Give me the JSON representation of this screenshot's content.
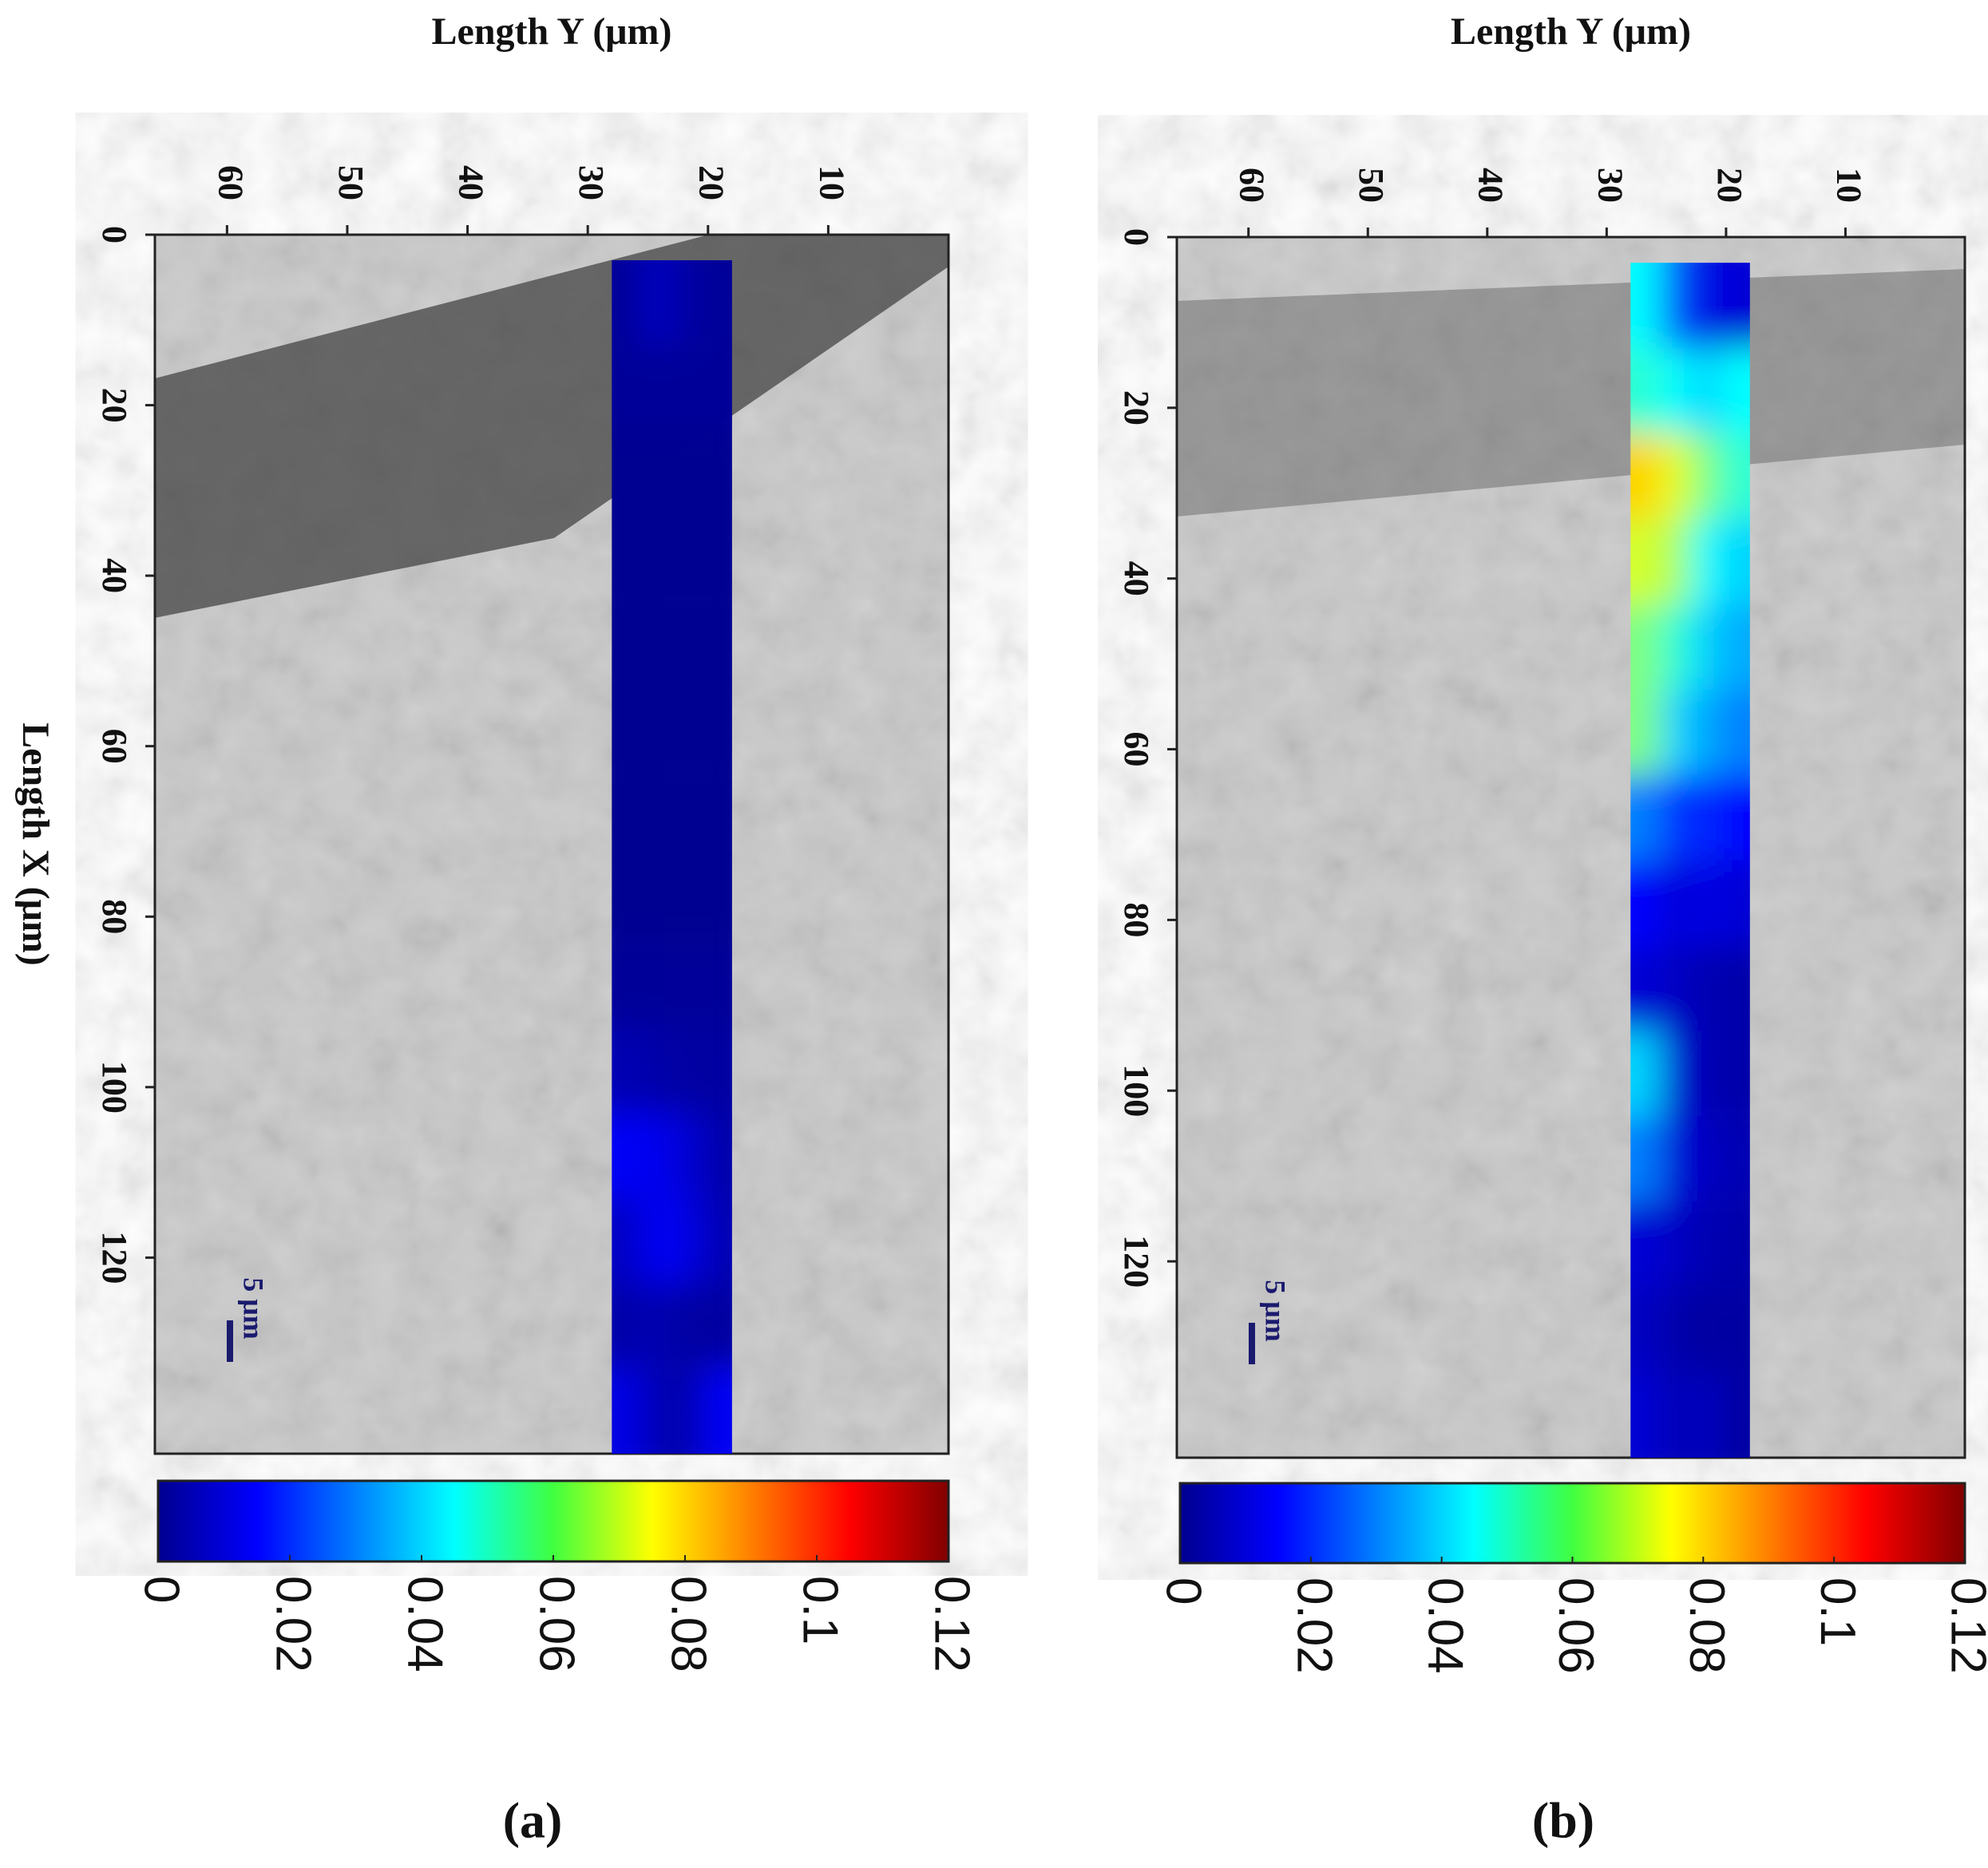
{
  "chart_data": [
    {
      "type": "heatmap",
      "panel_label": "(a)",
      "xlabel": "Length Y (μm)",
      "ylabel": "Length X (μm)",
      "scale_bar_label": "5 μm",
      "xlim": [
        66,
        0
      ],
      "xticks": [
        60,
        50,
        40,
        30,
        20,
        10
      ],
      "ylim": [
        0,
        143
      ],
      "yticks": [
        0,
        20,
        40,
        60,
        80,
        100,
        120
      ],
      "x": [
        26.75,
        24.25,
        21.75,
        19.25
      ],
      "y": [
        8,
        18,
        28,
        38,
        48,
        58,
        68,
        78,
        88,
        98,
        108,
        118,
        128,
        138
      ],
      "z": [
        [
          0.003,
          0.008,
          0.004,
          0.003
        ],
        [
          0.003,
          0.003,
          0.003,
          0.003
        ],
        [
          0.002,
          0.002,
          0.002,
          0.002
        ],
        [
          0.002,
          0.002,
          0.002,
          0.002
        ],
        [
          0.002,
          0.002,
          0.002,
          0.002
        ],
        [
          0.002,
          0.002,
          0.002,
          0.002
        ],
        [
          0.002,
          0.002,
          0.002,
          0.002
        ],
        [
          0.002,
          0.002,
          0.002,
          0.002
        ],
        [
          0.003,
          0.003,
          0.003,
          0.003
        ],
        [
          0.006,
          0.005,
          0.004,
          0.004
        ],
        [
          0.014,
          0.013,
          0.01,
          0.005
        ],
        [
          0.008,
          0.014,
          0.012,
          0.006
        ],
        [
          0.005,
          0.006,
          0.004,
          0.004
        ],
        [
          0.012,
          0.006,
          0.005,
          0.014
        ]
      ],
      "clim": [
        0,
        0.12
      ],
      "cticks": [
        0,
        0.02,
        0.04,
        0.06,
        0.08,
        0.1,
        0.12
      ]
    },
    {
      "type": "heatmap",
      "panel_label": "(b)",
      "xlabel": "Length Y (μm)",
      "scale_bar_label": "5 μm",
      "xlim": [
        66,
        0
      ],
      "xticks": [
        60,
        50,
        40,
        30,
        20,
        10
      ],
      "ylim": [
        0,
        143
      ],
      "yticks": [
        0,
        20,
        40,
        60,
        80,
        100,
        120
      ],
      "x": [
        26.75,
        24.25,
        21.75,
        19.25
      ],
      "y": [
        8,
        18,
        28,
        38,
        48,
        58,
        68,
        78,
        88,
        98,
        108,
        118,
        128,
        138
      ],
      "z": [
        [
          0.045,
          0.025,
          0.012,
          0.01
        ],
        [
          0.05,
          0.045,
          0.04,
          0.045
        ],
        [
          0.08,
          0.072,
          0.06,
          0.05
        ],
        [
          0.07,
          0.065,
          0.045,
          0.04
        ],
        [
          0.06,
          0.05,
          0.04,
          0.035
        ],
        [
          0.06,
          0.04,
          0.035,
          0.03
        ],
        [
          0.03,
          0.02,
          0.02,
          0.015
        ],
        [
          0.015,
          0.01,
          0.012,
          0.01
        ],
        [
          0.01,
          0.008,
          0.006,
          0.005
        ],
        [
          0.04,
          0.01,
          0.006,
          0.005
        ],
        [
          0.03,
          0.01,
          0.008,
          0.006
        ],
        [
          0.01,
          0.008,
          0.006,
          0.005
        ],
        [
          0.008,
          0.005,
          0.004,
          0.004
        ],
        [
          0.01,
          0.006,
          0.008,
          0.004
        ]
      ],
      "clim": [
        0,
        0.12
      ],
      "cticks": [
        0,
        0.02,
        0.04,
        0.06,
        0.08,
        0.1,
        0.12
      ]
    }
  ]
}
